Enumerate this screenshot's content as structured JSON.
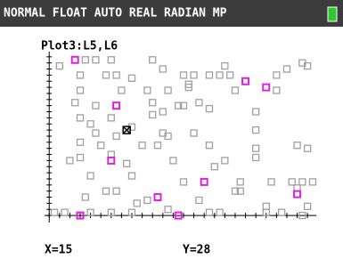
{
  "status_bar": "NORMAL FLOAT AUTO REAL RADIAN MP",
  "chart_data": {
    "type": "scatter",
    "title": "Plot3:L5,L6",
    "xlim": [
      -0.9,
      51.7
    ],
    "ylim": [
      -2.3,
      53.7
    ],
    "xticks": [
      0,
      2,
      4,
      6,
      8,
      10,
      12,
      14,
      16,
      18,
      20,
      22,
      24,
      26,
      28,
      30,
      32,
      34,
      36,
      38,
      40,
      42,
      44,
      46,
      48,
      50
    ],
    "yticks": [
      0,
      2,
      4,
      6,
      8,
      10,
      12,
      14,
      16,
      18,
      20,
      22,
      24,
      26,
      28,
      30,
      32,
      34,
      36,
      38,
      40,
      42,
      44,
      46,
      48,
      50,
      52
    ],
    "series": [
      {
        "color": "#a0a0a0",
        "x": [
          2,
          7,
          9,
          12,
          20,
          22,
          34,
          49,
          50,
          46,
          6,
          11,
          16,
          13,
          26,
          28,
          31,
          33,
          35,
          44,
          27,
          27,
          6,
          14,
          19,
          23,
          36,
          44,
          5,
          9,
          20,
          22,
          25,
          26,
          29,
          31,
          6,
          8,
          12,
          20,
          40,
          9,
          16,
          22,
          23,
          21,
          6,
          13,
          28,
          40,
          10,
          18,
          31,
          40,
          48,
          4,
          6,
          12,
          15,
          24,
          32,
          34,
          40,
          50,
          8,
          16,
          26,
          37,
          43,
          47,
          11,
          13,
          7,
          17,
          19,
          29,
          36,
          37,
          48,
          49,
          51,
          1,
          3,
          8,
          12,
          16,
          23,
          31,
          33,
          42,
          42,
          45,
          50,
          49
        ],
        "values": [
          49,
          51,
          51,
          51,
          51,
          48,
          49,
          50,
          49,
          48,
          46,
          46,
          45,
          46,
          46,
          46,
          46,
          46,
          46,
          46,
          42,
          43,
          41,
          41,
          41,
          41,
          41,
          41,
          37,
          36,
          37,
          34,
          36,
          36,
          37,
          35,
          32,
          30,
          32,
          33,
          34,
          27,
          29,
          27,
          26,
          23,
          24,
          26,
          27,
          28,
          23,
          23,
          23,
          22,
          23,
          18,
          19,
          20,
          17,
          18,
          16,
          18,
          19,
          22,
          13,
          13,
          11,
          11,
          11,
          11,
          8,
          8,
          6,
          4,
          5,
          5,
          8,
          8,
          9,
          11,
          11,
          1,
          1,
          1,
          1,
          1,
          2,
          1,
          1,
          3,
          1,
          1,
          3,
          0
        ]
      },
      {
        "color": "#e020e0",
        "x": [
          5,
          38,
          42,
          13,
          12,
          30,
          21,
          48,
          6,
          25
        ],
        "values": [
          51,
          44,
          42,
          36,
          18,
          11,
          6,
          7,
          0,
          0
        ]
      }
    ],
    "cursor": {
      "x": 15,
      "y": 28,
      "x_label": "X=15",
      "y_label": "Y=28"
    }
  }
}
